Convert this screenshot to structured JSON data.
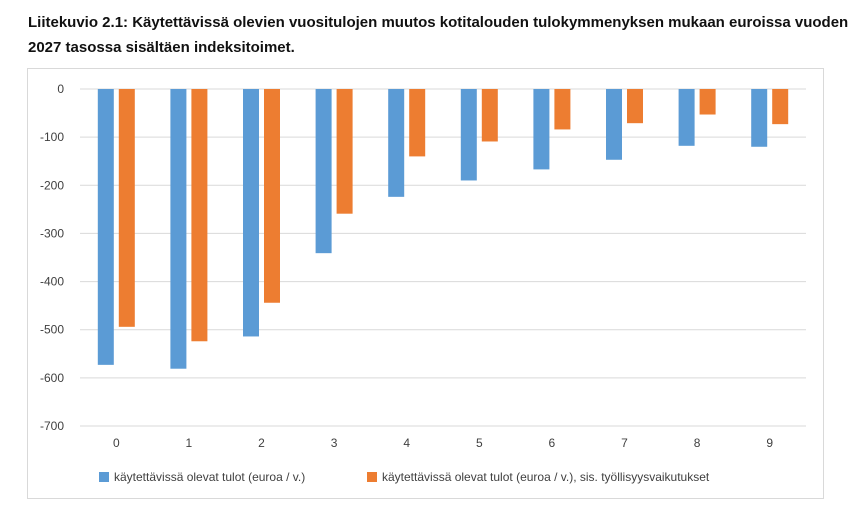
{
  "title": "Liitekuvio 2.1: Käytettävissä olevien vuositulojen muutos kotitalouden tulokymmenyksen mukaan euroissa vuoden 2027 tasossa sisältäen indeksitoimet.",
  "chart_data": {
    "type": "bar",
    "title": "Liitekuvio 2.1: Käytettävissä olevien vuositulojen muutos kotitalouden tulokymmenyksen mukaan euroissa vuoden 2027 tasossa sisältäen indeksitoimet.",
    "xlabel": "",
    "ylabel": "",
    "ylim": [
      -700,
      0
    ],
    "yticks": [
      0,
      -100,
      -200,
      -300,
      -400,
      -500,
      -600,
      -700
    ],
    "categories": [
      "0",
      "1",
      "2",
      "3",
      "4",
      "5",
      "6",
      "7",
      "8",
      "9"
    ],
    "grid": true,
    "legend_position": "bottom",
    "series": [
      {
        "name": "käytettävissä olevat tulot (euroa / v.)",
        "color": "#5b9bd5",
        "values": [
          -573,
          -581,
          -514,
          -341,
          -224,
          -190,
          -167,
          -147,
          -118,
          -120
        ]
      },
      {
        "name": "käytettävissä olevat tulot (euroa / v.), sis. työllisyysvaikutukset",
        "color": "#ed7d31",
        "values": [
          -494,
          -524,
          -444,
          -259,
          -140,
          -109,
          -84,
          -71,
          -53,
          -73
        ]
      }
    ]
  }
}
